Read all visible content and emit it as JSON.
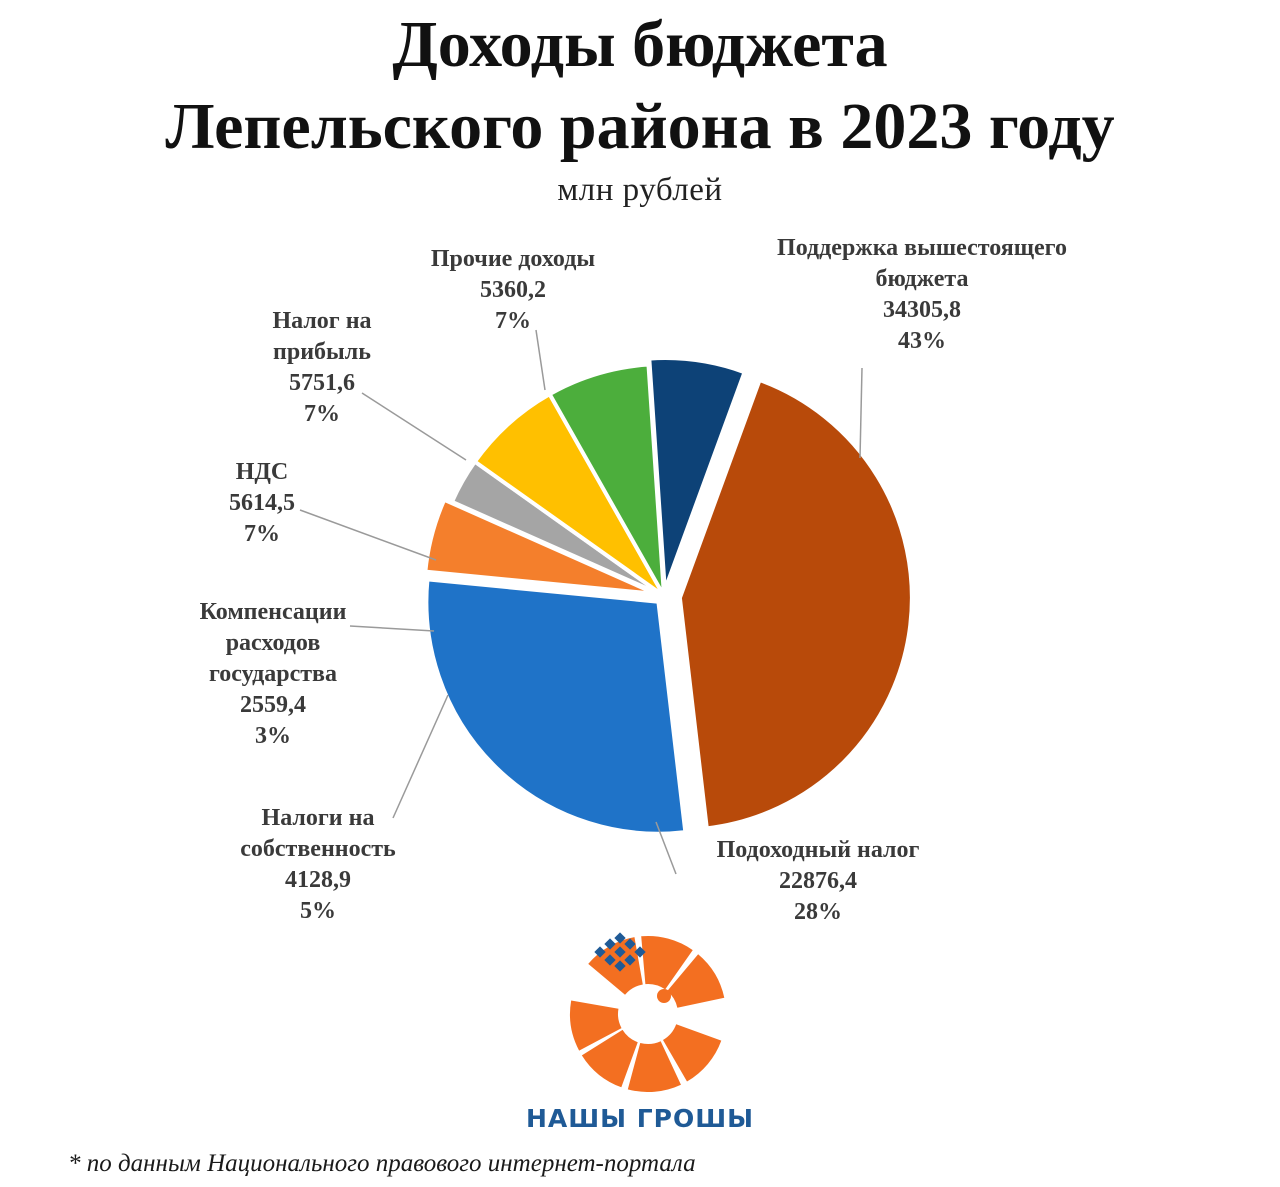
{
  "title_line1": "Доходы бюджета",
  "title_line2": "Лепельского района в 2023 году",
  "subtitle": "млн рублей",
  "chart_data": {
    "type": "pie",
    "title": "Доходы бюджета Лепельского района в 2023 году",
    "unit": "млн рублей",
    "slices": [
      {
        "label": "Поддержка вышестоящего бюджета",
        "label_lines": [
          "Поддержка вышестоящего",
          "бюджета"
        ],
        "value": 34305.8,
        "value_text": "34305,8",
        "percent": "43%",
        "color": "#b84a0a"
      },
      {
        "label": "Подоходный налог",
        "label_lines": [
          "Подоходный налог"
        ],
        "value": 22876.4,
        "value_text": "22876,4",
        "percent": "28%",
        "color": "#1f73c8"
      },
      {
        "label": "Налоги на собственность",
        "label_lines": [
          "Налоги на",
          "собственность"
        ],
        "value": 4128.9,
        "value_text": "4128,9",
        "percent": "5%",
        "color": "#f47f2c"
      },
      {
        "label": "Компенсации расходов государства",
        "label_lines": [
          "Компенсации",
          "расходов",
          "государства"
        ],
        "value": 2559.4,
        "value_text": "2559,4",
        "percent": "3%",
        "color": "#a5a5a5"
      },
      {
        "label": "НДС",
        "label_lines": [
          "НДС"
        ],
        "value": 5614.5,
        "value_text": "5614,5",
        "percent": "7%",
        "color": "#ffc000"
      },
      {
        "label": "Налог на прибыль",
        "label_lines": [
          "Налог на",
          "прибыль"
        ],
        "value": 5751.6,
        "value_text": "5751,6",
        "percent": "7%",
        "color": "#4cae3c"
      },
      {
        "label": "Прочие доходы",
        "label_lines": [
          "Прочие доходы"
        ],
        "value": 5360.2,
        "value_text": "5360,2",
        "percent": "7%",
        "color": "#0d4277"
      }
    ]
  },
  "logo": {
    "text": "НАШЫ ГРОШЫ",
    "colors": {
      "orange": "#f36f21",
      "blue": "#1f5a96"
    }
  },
  "footnote": "* по данным Национального правового интернет-портала"
}
